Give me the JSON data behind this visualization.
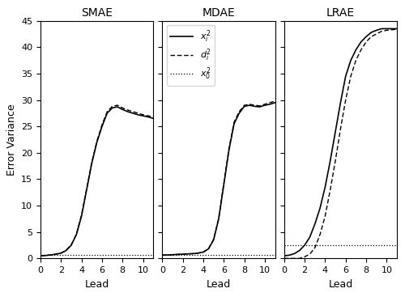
{
  "titles": [
    "SMAE",
    "MDAE",
    "LRAE"
  ],
  "xlabel": "Lead",
  "ylabel": "Error Variance",
  "ylim": [
    0,
    45
  ],
  "xlim": [
    0,
    11
  ],
  "xticks": [
    0,
    2,
    4,
    6,
    8,
    10
  ],
  "yticks": [
    0,
    5,
    10,
    15,
    20,
    25,
    30,
    35,
    40,
    45
  ],
  "legend_labels": [
    "$x_i^2$",
    "$d_i^2$",
    "$x_0^2$"
  ],
  "smae_solid": [
    0.5,
    0.55,
    0.65,
    0.8,
    1.0,
    1.5,
    2.5,
    4.5,
    8.0,
    13.0,
    18.0,
    22.0,
    25.0,
    27.5,
    28.5,
    28.7,
    28.2,
    27.8,
    27.5,
    27.2,
    27.0,
    26.8,
    26.5
  ],
  "smae_dashed": [
    0.5,
    0.55,
    0.65,
    0.8,
    1.0,
    1.5,
    2.6,
    4.6,
    8.2,
    13.2,
    18.2,
    22.2,
    25.3,
    27.8,
    28.8,
    29.0,
    28.5,
    28.1,
    27.8,
    27.5,
    27.2,
    27.0,
    26.8
  ],
  "smae_dotted": 0.7,
  "mdae_solid": [
    0.6,
    0.65,
    0.7,
    0.75,
    0.8,
    0.85,
    0.9,
    1.0,
    1.2,
    1.8,
    3.5,
    7.5,
    14.0,
    20.5,
    25.5,
    27.5,
    28.8,
    29.0,
    28.8,
    28.7,
    29.0,
    29.2,
    29.5
  ],
  "mdae_dashed": [
    0.6,
    0.65,
    0.7,
    0.75,
    0.8,
    0.85,
    0.9,
    1.0,
    1.2,
    1.8,
    3.6,
    7.6,
    14.2,
    20.8,
    25.8,
    27.8,
    29.0,
    29.2,
    29.0,
    28.9,
    29.2,
    29.5,
    29.8
  ],
  "mdae_dotted": 0.6,
  "lrae_solid": [
    0.5,
    0.6,
    0.9,
    1.5,
    2.5,
    4.0,
    6.5,
    9.5,
    13.5,
    18.5,
    24.0,
    29.5,
    34.5,
    37.5,
    39.5,
    41.0,
    42.0,
    42.8,
    43.2,
    43.5,
    43.5,
    43.5,
    43.5
  ],
  "lrae_dashed": [
    0.0,
    0.0,
    0.0,
    0.0,
    0.3,
    0.8,
    2.0,
    4.5,
    8.0,
    13.0,
    18.5,
    24.5,
    30.0,
    34.5,
    37.5,
    39.5,
    41.0,
    42.0,
    42.5,
    43.0,
    43.2,
    43.3,
    43.4
  ],
  "lrae_dotted": 2.5,
  "lead_x": [
    0.0,
    0.5,
    1.0,
    1.5,
    2.0,
    2.5,
    3.0,
    3.5,
    4.0,
    4.5,
    5.0,
    5.5,
    6.0,
    6.5,
    7.0,
    7.5,
    8.0,
    8.5,
    9.0,
    9.5,
    10.0,
    10.5,
    11.0
  ]
}
